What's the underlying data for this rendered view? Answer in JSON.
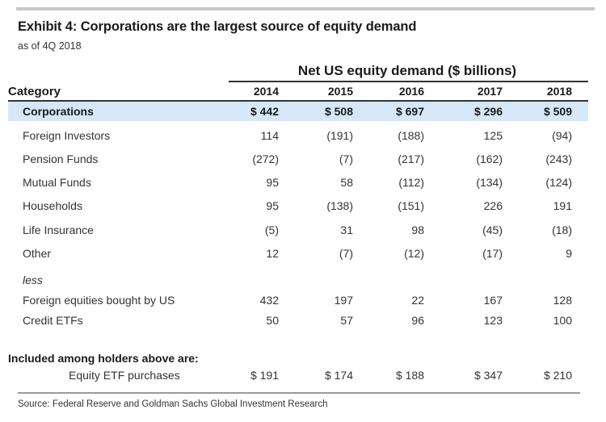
{
  "title": "Exhibit 4: Corporations are the largest source of equity demand",
  "subtitle": "as of 4Q 2018",
  "table": {
    "group_header": "Net US equity demand ($ billions)",
    "category_header": "Category",
    "years": [
      "2014",
      "2015",
      "2016",
      "2017",
      "2018"
    ],
    "highlight_row": {
      "label": "Corporations",
      "values": [
        "$ 442",
        "$ 508",
        "$ 697",
        "$ 296",
        "$ 509"
      ]
    },
    "rows": [
      {
        "label": "Foreign Investors",
        "values": [
          "114",
          "(191)",
          "(188)",
          "125",
          "(94)"
        ]
      },
      {
        "label": "Pension Funds",
        "values": [
          "(272)",
          "(7)",
          "(217)",
          "(162)",
          "(243)"
        ]
      },
      {
        "label": "Mutual Funds",
        "values": [
          "95",
          "58",
          "(112)",
          "(134)",
          "(124)"
        ]
      },
      {
        "label": "Households",
        "values": [
          "95",
          "(138)",
          "(151)",
          "226",
          "191"
        ]
      },
      {
        "label": "Life Insurance",
        "values": [
          "(5)",
          "31",
          "98",
          "(45)",
          "(18)"
        ]
      },
      {
        "label": "Other",
        "values": [
          "12",
          "(7)",
          "(12)",
          "(17)",
          "9"
        ]
      }
    ],
    "less_label": "less",
    "less_rows": [
      {
        "label": "Foreign equities bought by US",
        "values": [
          "432",
          "197",
          "22",
          "167",
          "128"
        ]
      },
      {
        "label": "Credit ETFs",
        "values": [
          "50",
          "57",
          "96",
          "123",
          "100"
        ]
      }
    ],
    "included_label": "Included among holders above are:",
    "included_row": {
      "label": "Equity ETF purchases",
      "values": [
        "$ 191",
        "$ 174",
        "$ 188",
        "$ 347",
        "$ 210"
      ]
    }
  },
  "source": "Source: Federal Reserve and Goldman Sachs Global Investment Research",
  "colors": {
    "highlight": "#d6e8f8",
    "rule": "#333333"
  }
}
